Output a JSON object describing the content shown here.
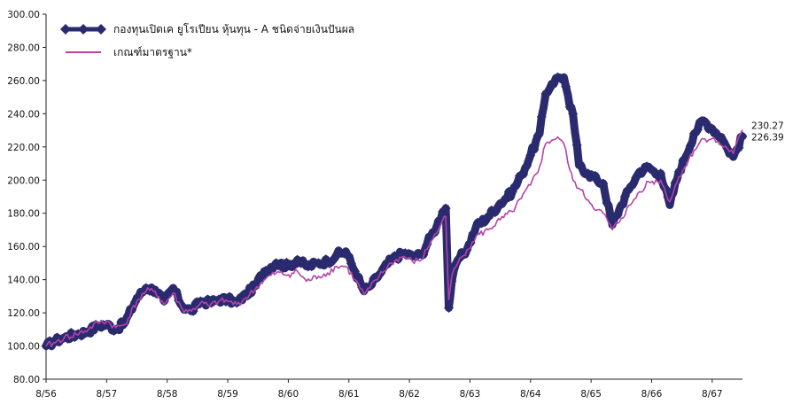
{
  "chart_data": {
    "type": "line",
    "title": "",
    "xlabel": "",
    "ylabel": "",
    "ylim": [
      80,
      300
    ],
    "y_ticks": [
      "80.00",
      "100.00",
      "120.00",
      "140.00",
      "160.00",
      "180.00",
      "200.00",
      "220.00",
      "240.00",
      "260.00",
      "280.00",
      "300.00"
    ],
    "x_ticks": [
      "8/56",
      "8/57",
      "8/58",
      "8/59",
      "8/60",
      "8/61",
      "8/62",
      "8/63",
      "8/64",
      "8/65",
      "8/66",
      "8/67"
    ],
    "x_range": [
      0,
      11.5
    ],
    "grid": false,
    "legend_position": "top-left",
    "series": [
      {
        "name": "กองทุนเปิดเค ยูโรเปียน หุ้นทุน - A ชนิดจ่ายเงินปันผล",
        "color": "#2a2a6e",
        "marker": "diamond",
        "end_label": "226.39",
        "x": [
          0,
          0.15,
          0.3,
          0.5,
          0.7,
          0.85,
          1.0,
          1.15,
          1.3,
          1.5,
          1.65,
          1.8,
          1.95,
          2.1,
          2.25,
          2.4,
          2.55,
          2.7,
          2.85,
          3.0,
          3.15,
          3.3,
          3.45,
          3.6,
          3.8,
          4.0,
          4.15,
          4.3,
          4.5,
          4.65,
          4.8,
          4.95,
          5.1,
          5.25,
          5.35,
          5.5,
          5.7,
          5.9,
          6.05,
          6.2,
          6.35,
          6.45,
          6.55,
          6.6,
          6.65,
          6.7,
          6.8,
          6.95,
          7.1,
          7.3,
          7.5,
          7.7,
          7.85,
          8.0,
          8.15,
          8.25,
          8.35,
          8.45,
          8.55,
          8.65,
          8.7,
          8.8,
          8.95,
          9.1,
          9.2,
          9.35,
          9.5,
          9.65,
          9.8,
          9.95,
          10.1,
          10.15,
          10.3,
          10.45,
          10.55,
          10.7,
          10.85,
          11.0,
          11.15,
          11.25,
          11.35,
          11.5
        ],
        "values": [
          100,
          103,
          105,
          107,
          109,
          112,
          113,
          110,
          114,
          129,
          135,
          134,
          127,
          135,
          124,
          121,
          127,
          126,
          128,
          128,
          126,
          131,
          136,
          145,
          150,
          148,
          152,
          148,
          150,
          151,
          155,
          157,
          145,
          133,
          136,
          143,
          152,
          156,
          154,
          155,
          166,
          172,
          181,
          183,
          123,
          139,
          152,
          158,
          172,
          178,
          186,
          193,
          203,
          215,
          228,
          252,
          258,
          262,
          262,
          244,
          240,
          209,
          204,
          200,
          198,
          173,
          185,
          196,
          205,
          208,
          203,
          204,
          185,
          205,
          213,
          228,
          236,
          231,
          226,
          219,
          214,
          226.39
        ]
      },
      {
        "name": "เกณฑ์มาตรฐาน*",
        "color": "#b543a8",
        "marker": "none",
        "end_label": "230.27",
        "x": [
          0,
          0.15,
          0.3,
          0.5,
          0.7,
          0.85,
          1.0,
          1.15,
          1.3,
          1.5,
          1.65,
          1.8,
          1.95,
          2.1,
          2.25,
          2.4,
          2.55,
          2.7,
          2.85,
          3.0,
          3.15,
          3.3,
          3.45,
          3.6,
          3.8,
          4.0,
          4.15,
          4.3,
          4.5,
          4.65,
          4.8,
          4.95,
          5.1,
          5.25,
          5.35,
          5.5,
          5.7,
          5.9,
          6.05,
          6.2,
          6.35,
          6.45,
          6.55,
          6.6,
          6.65,
          6.7,
          6.8,
          6.95,
          7.1,
          7.3,
          7.5,
          7.7,
          7.85,
          8.0,
          8.15,
          8.25,
          8.35,
          8.45,
          8.55,
          8.65,
          8.7,
          8.8,
          8.95,
          9.1,
          9.2,
          9.35,
          9.5,
          9.65,
          9.8,
          9.95,
          10.1,
          10.15,
          10.3,
          10.45,
          10.55,
          10.7,
          10.85,
          11.0,
          11.15,
          11.25,
          11.35,
          11.5
        ],
        "values": [
          100,
          102,
          105,
          107,
          110,
          114,
          115,
          111,
          113,
          127,
          133,
          133,
          125,
          132,
          122,
          121,
          126,
          124,
          127,
          127,
          125,
          129,
          134,
          140,
          144,
          143,
          145,
          139,
          142,
          144,
          148,
          148,
          140,
          131,
          135,
          142,
          150,
          154,
          151,
          152,
          163,
          168,
          176,
          178,
          128,
          142,
          150,
          158,
          166,
          170,
          176,
          181,
          189,
          197,
          208,
          222,
          224,
          226,
          222,
          206,
          200,
          195,
          188,
          182,
          180,
          170,
          177,
          185,
          193,
          199,
          199,
          200,
          187,
          202,
          208,
          218,
          225,
          225,
          221,
          219,
          216,
          230.27
        ]
      }
    ]
  }
}
